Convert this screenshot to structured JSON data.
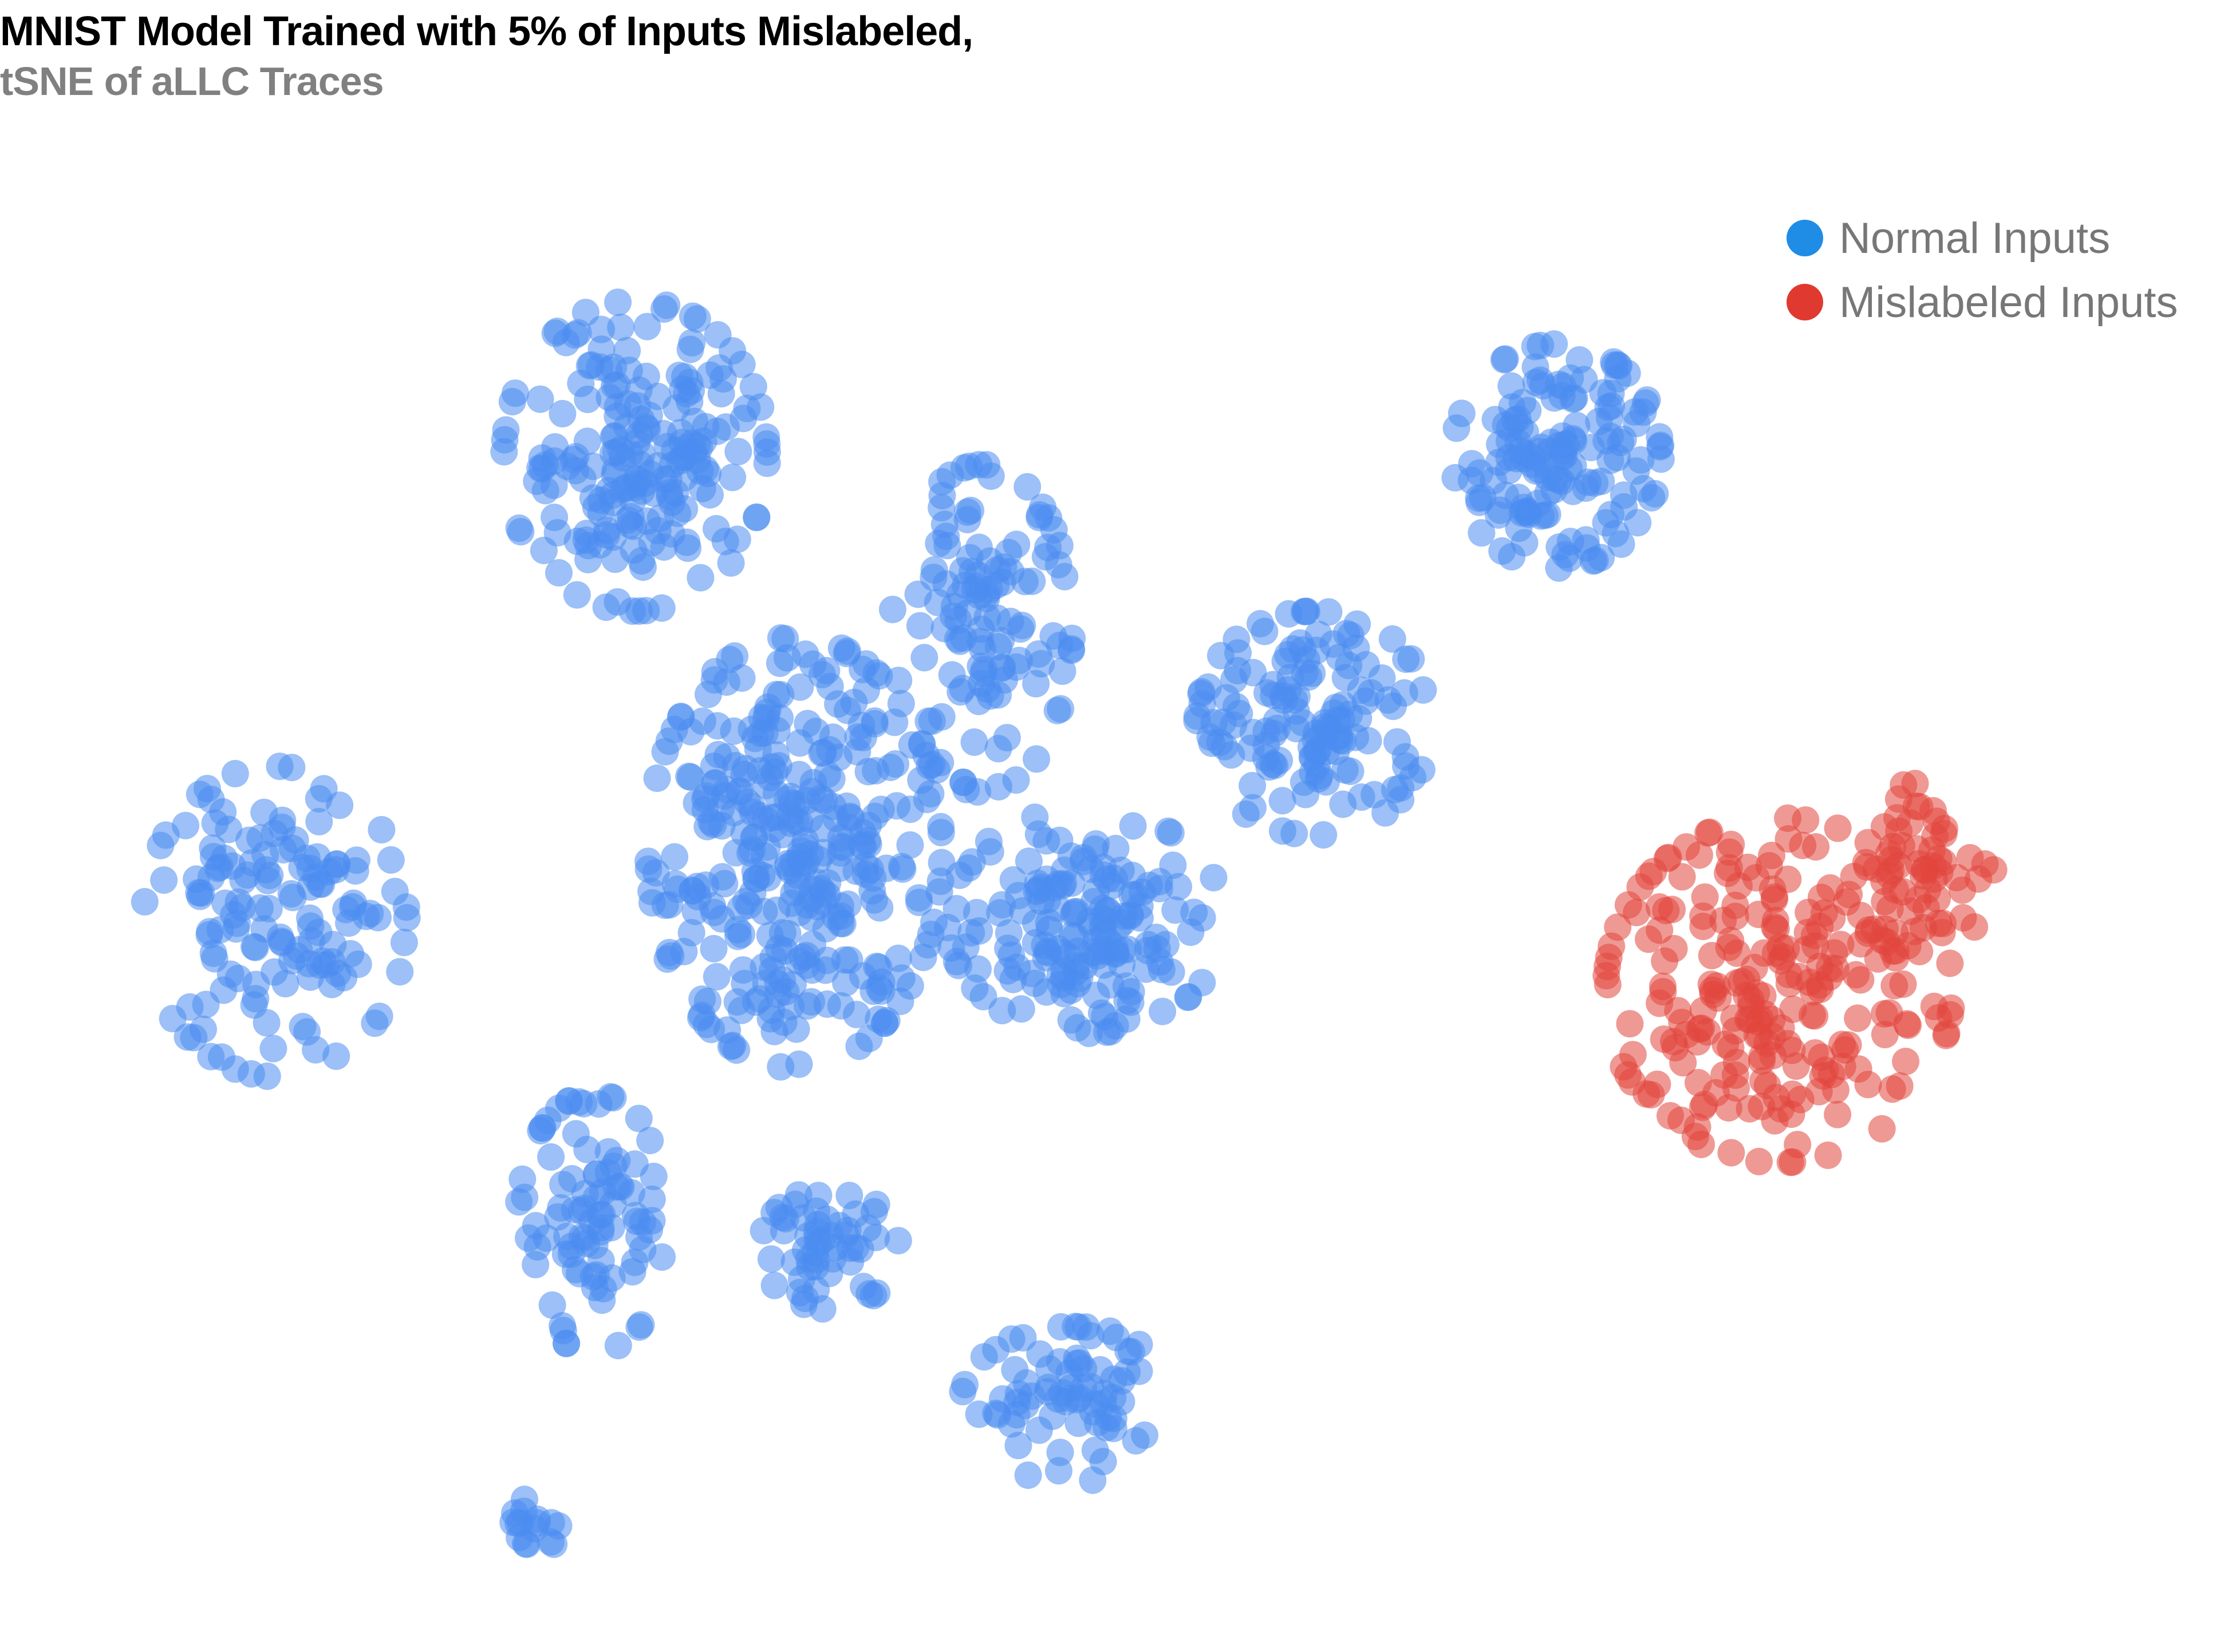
{
  "colors": {
    "normal": "#4a8cf0",
    "mislabeled": "#e2453c",
    "legend_normal": "#1f8ce6",
    "legend_mislabeled": "#e0392f"
  },
  "chart_data": {
    "type": "scatter",
    "title": "MNIST Model Trained with 5% of Inputs Mislabeled,",
    "subtitle": "tSNE of aLLC Traces",
    "xlabel": "",
    "ylabel": "",
    "axes_visible": false,
    "grid": false,
    "legend_position": "top-right",
    "series": [
      {
        "name": "Normal Inputs",
        "color": "#4a8cf0",
        "opacity": 0.55,
        "clusters": [
          {
            "cx": 1.0,
            "cy": 0.25,
            "rx": 1.06,
            "ry": 1.25,
            "n": 340
          },
          {
            "cx": -0.15,
            "cy": 2.55,
            "rx": 0.95,
            "ry": 0.9,
            "n": 200
          },
          {
            "cx": -0.45,
            "cy": -1.9,
            "rx": 0.55,
            "ry": 0.75,
            "n": 90
          },
          {
            "cx": 2.35,
            "cy": 1.55,
            "rx": 0.65,
            "ry": 0.95,
            "n": 120
          },
          {
            "cx": 1.25,
            "cy": -2.05,
            "rx": 0.5,
            "ry": 0.35,
            "n": 55
          },
          {
            "cx": 3.1,
            "cy": -0.15,
            "rx": 1.0,
            "ry": 0.65,
            "n": 170
          },
          {
            "cx": 4.75,
            "cy": 1.0,
            "rx": 0.85,
            "ry": 0.65,
            "n": 140
          },
          {
            "cx": 6.5,
            "cy": 2.55,
            "rx": 0.75,
            "ry": 0.65,
            "n": 150
          },
          {
            "cx": 3.0,
            "cy": -2.95,
            "rx": 0.8,
            "ry": 0.45,
            "n": 75
          },
          {
            "cx": -2.75,
            "cy": -0.15,
            "rx": 0.95,
            "ry": 0.9,
            "n": 140
          },
          {
            "cx": -0.9,
            "cy": -3.65,
            "rx": 0.25,
            "ry": 0.15,
            "n": 16
          }
        ]
      },
      {
        "name": "Mislabeled Inputs",
        "color": "#e2453c",
        "opacity": 0.55,
        "clusters": [
          {
            "cx": 8.1,
            "cy": -0.55,
            "rx": 1.25,
            "ry": 1.0,
            "n": 230
          },
          {
            "cx": 9.1,
            "cy": 0.15,
            "rx": 0.55,
            "ry": 0.5,
            "n": 60
          }
        ]
      }
    ],
    "xlim": [
      -4.2,
      10.8
    ],
    "ylim": [
      -4.1,
      4.1
    ]
  }
}
